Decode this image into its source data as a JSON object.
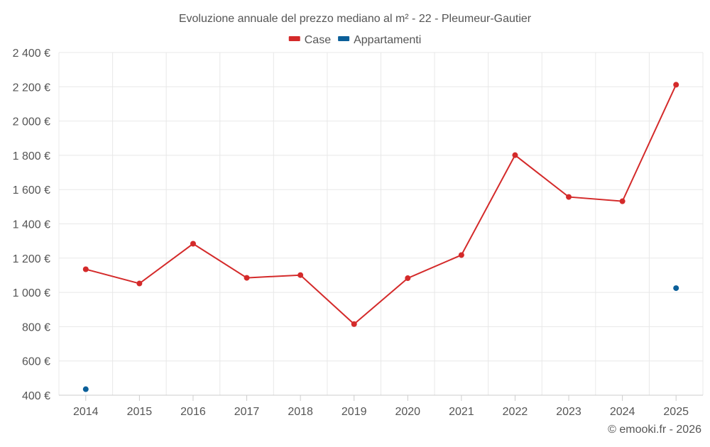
{
  "chart_data": {
    "type": "line",
    "title": "Evoluzione annuale del prezzo mediano al m² - 22 - Pleumeur-Gautier",
    "categories": [
      "2014",
      "2015",
      "2016",
      "2017",
      "2018",
      "2019",
      "2020",
      "2021",
      "2022",
      "2023",
      "2024",
      "2025"
    ],
    "ylim": [
      400,
      2400
    ],
    "yticks": [
      400,
      600,
      800,
      1000,
      1200,
      1400,
      1600,
      1800,
      2000,
      2200,
      2400
    ],
    "ytick_labels": [
      "400 €",
      "600 €",
      "800 €",
      "1 000 €",
      "1 200 €",
      "1 400 €",
      "1 600 €",
      "1 800 €",
      "2 000 €",
      "2 200 €",
      "2 400 €"
    ],
    "grid": true,
    "legend_position": "top-center",
    "series": [
      {
        "name": "Case",
        "color": "#d42a2a",
        "values": [
          1135,
          1052,
          1284,
          1085,
          1101,
          815,
          1083,
          1218,
          1801,
          1557,
          1532,
          2212
        ]
      },
      {
        "name": "Appartamenti",
        "color": "#0b5f99",
        "values": [
          435,
          null,
          null,
          null,
          null,
          null,
          null,
          null,
          null,
          null,
          null,
          1025
        ]
      }
    ]
  },
  "credit": "© emooki.fr - 2026"
}
